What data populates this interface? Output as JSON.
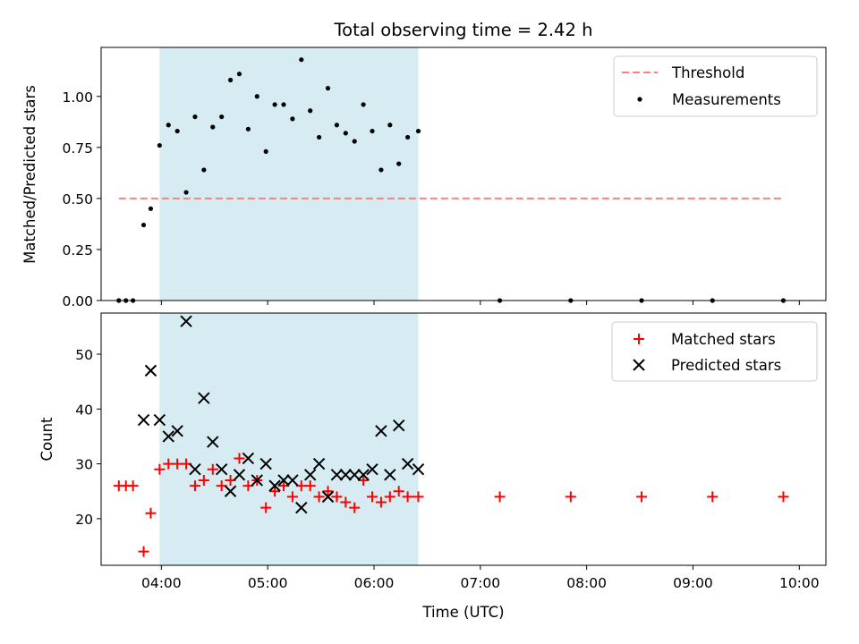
{
  "title": "Total observing time = 2.42 h",
  "colors": {
    "shade": "#add8e6",
    "threshold": "#ff7f7f",
    "matched": "#ff0000",
    "predicted": "#000000",
    "measure": "#000000"
  },
  "chart_data": [
    {
      "type": "scatter",
      "panel": "top",
      "ylabel": "Matched/Predicted stars",
      "ylim": [
        0,
        1.24
      ],
      "yticks": [
        "0.00",
        "0.25",
        "0.50",
        "0.75",
        "1.00"
      ],
      "xlim": [
        "03:26",
        "10:15"
      ],
      "shaded_interval": [
        "03:59",
        "06:25"
      ],
      "threshold": {
        "name": "Threshold",
        "value": 0.5,
        "x_range": [
          "03:36",
          "09:51"
        ]
      },
      "legend": {
        "position": "upper right",
        "entries": [
          "Threshold",
          "Measurements"
        ]
      },
      "series": [
        {
          "name": "Measurements",
          "x": [
            "03:36",
            "03:40",
            "03:44",
            "03:50",
            "03:54",
            "03:59",
            "04:04",
            "04:09",
            "04:14",
            "04:19",
            "04:24",
            "04:29",
            "04:34",
            "04:39",
            "04:44",
            "04:49",
            "04:54",
            "04:59",
            "05:04",
            "05:09",
            "05:14",
            "05:19",
            "05:24",
            "05:29",
            "05:34",
            "05:39",
            "05:44",
            "05:49",
            "05:54",
            "05:59",
            "06:04",
            "06:09",
            "06:14",
            "06:19",
            "06:25",
            "07:11",
            "07:51",
            "08:31",
            "09:11",
            "09:51"
          ],
          "y": [
            0,
            0,
            0,
            0.37,
            0.45,
            0.76,
            0.86,
            0.83,
            0.53,
            0.9,
            0.64,
            0.85,
            0.9,
            1.08,
            1.11,
            0.84,
            1.0,
            0.73,
            0.96,
            0.96,
            0.89,
            1.18,
            0.93,
            0.8,
            1.04,
            0.86,
            0.82,
            0.78,
            0.96,
            0.83,
            0.64,
            0.86,
            0.67,
            0.8,
            0.83,
            0,
            0,
            0,
            0,
            0
          ]
        }
      ]
    },
    {
      "type": "scatter",
      "panel": "bottom",
      "xlabel": "Time (UTC)",
      "ylabel": "Count",
      "ylim": [
        11.5,
        57.5
      ],
      "yticks": [
        "20",
        "30",
        "40",
        "50"
      ],
      "xlim": [
        "03:26",
        "10:15"
      ],
      "xticks": [
        "04:00",
        "05:00",
        "06:00",
        "07:00",
        "08:00",
        "09:00",
        "10:00"
      ],
      "shaded_interval": [
        "03:59",
        "06:25"
      ],
      "legend": {
        "position": "upper right",
        "entries": [
          "Matched stars",
          "Predicted stars"
        ]
      },
      "series": [
        {
          "name": "Matched stars",
          "marker": "plus",
          "x": [
            "03:36",
            "03:40",
            "03:44",
            "03:50",
            "03:54",
            "03:59",
            "04:04",
            "04:09",
            "04:14",
            "04:19",
            "04:24",
            "04:29",
            "04:34",
            "04:39",
            "04:44",
            "04:49",
            "04:54",
            "04:59",
            "05:04",
            "05:09",
            "05:14",
            "05:19",
            "05:24",
            "05:29",
            "05:34",
            "05:39",
            "05:44",
            "05:49",
            "05:54",
            "05:59",
            "06:04",
            "06:09",
            "06:14",
            "06:19",
            "06:25",
            "07:11",
            "07:51",
            "08:31",
            "09:11",
            "09:51"
          ],
          "y": [
            26,
            26,
            26,
            14,
            21,
            29,
            30,
            30,
            30,
            26,
            27,
            29,
            26,
            27,
            31,
            26,
            27,
            22,
            25,
            26,
            24,
            26,
            26,
            24,
            25,
            24,
            23,
            22,
            27,
            24,
            23,
            24,
            25,
            24,
            24,
            24,
            24,
            24,
            24,
            24
          ]
        },
        {
          "name": "Predicted stars",
          "marker": "x",
          "x": [
            "03:50",
            "03:54",
            "03:59",
            "04:04",
            "04:09",
            "04:14",
            "04:19",
            "04:24",
            "04:29",
            "04:34",
            "04:39",
            "04:44",
            "04:49",
            "04:54",
            "04:59",
            "05:04",
            "05:09",
            "05:14",
            "05:19",
            "05:24",
            "05:29",
            "05:34",
            "05:39",
            "05:44",
            "05:49",
            "05:54",
            "05:59",
            "06:04",
            "06:09",
            "06:14",
            "06:19",
            "06:25"
          ],
          "y": [
            38,
            47,
            38,
            35,
            36,
            56,
            29,
            42,
            34,
            29,
            25,
            28,
            31,
            27,
            30,
            26,
            27,
            27,
            22,
            28,
            30,
            24,
            28,
            28,
            28,
            28,
            29,
            36,
            28,
            37,
            30,
            29
          ]
        }
      ]
    }
  ]
}
